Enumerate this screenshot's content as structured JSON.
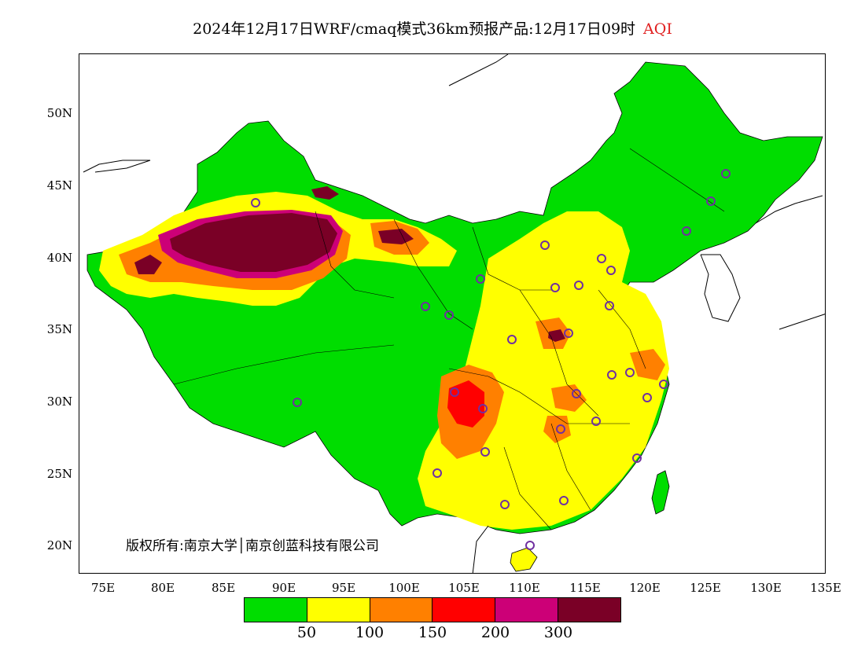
{
  "title": {
    "main": "2024年12月17日WRF/cmaq模式36km预报产品:12月17日09时",
    "variable": "AQI"
  },
  "axes": {
    "y_ticks": [
      "50N",
      "45N",
      "40N",
      "35N",
      "30N",
      "25N",
      "20N"
    ],
    "x_ticks": [
      "75E",
      "80E",
      "85E",
      "90E",
      "95E",
      "100E",
      "105E",
      "110E",
      "115E",
      "120E",
      "125E",
      "130E",
      "135E"
    ],
    "lon_range": [
      73,
      135
    ],
    "lat_range": [
      18,
      54
    ]
  },
  "copyright": "版权所有:南京大学│南京创蓝科技有限公司",
  "legend": {
    "colors": [
      "#00dd00",
      "#ffff00",
      "#ff8000",
      "#ff0000",
      "#cc0077",
      "#7a0026"
    ],
    "labels": [
      "50",
      "100",
      "150",
      "200",
      "300"
    ]
  },
  "station_marker_color": "#7030a0"
}
